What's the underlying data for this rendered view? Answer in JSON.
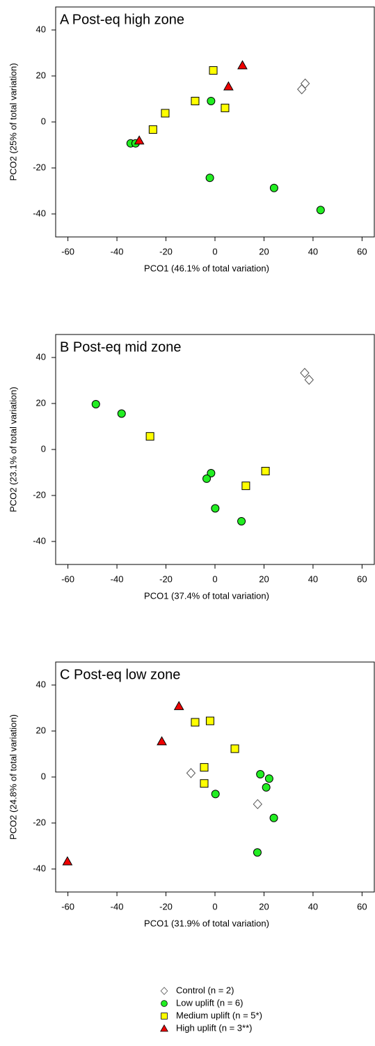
{
  "chart_data": [
    {
      "type": "scatter",
      "title": "A Post-eq high zone",
      "xlabel": "PCO1 (46.1% of total variation)",
      "ylabel": "PCO2 (25% of total variation)",
      "xlim": [
        -65,
        65
      ],
      "xticks": [
        -60,
        -40,
        -20,
        0,
        20,
        40,
        60
      ],
      "ylim": [
        -50,
        50
      ],
      "yticks": [
        -40,
        -20,
        0,
        20,
        40
      ],
      "series": [
        {
          "name": "Control (n = 2)",
          "color": "#ffffff",
          "marker": "diamond",
          "x": [
            36.8,
            35.4
          ],
          "y": [
            16.7,
            14.2
          ]
        },
        {
          "name": "Low uplift (n = 6)",
          "color": "#22ee22",
          "marker": "circle",
          "x": [
            -1.6,
            -34.4,
            -32.4,
            -2.1,
            24.1,
            43.1
          ],
          "y": [
            9.1,
            -9.3,
            -9.3,
            -24.3,
            -28.7,
            -38.3
          ]
        },
        {
          "name": "Medium uplift (n = 5*)",
          "color": "#ffff00",
          "marker": "square",
          "x": [
            -0.7,
            -8.1,
            -20.3,
            -25.3,
            4.1
          ],
          "y": [
            22.4,
            9.1,
            3.8,
            -3.3,
            6.1
          ]
        },
        {
          "name": "High uplift (n = 3**)",
          "color": "#ee0000",
          "marker": "triangle",
          "x": [
            11.2,
            5.5,
            -30.9
          ],
          "y": [
            24.6,
            15.4,
            -8.1
          ]
        }
      ]
    },
    {
      "type": "scatter",
      "title": "B Post-eq mid zone",
      "xlabel": "PCO1 (37.4% of total variation)",
      "ylabel": "PCO2 (23.1% of total variation)",
      "xlim": [
        -65,
        65
      ],
      "xticks": [
        -60,
        -40,
        -20,
        0,
        20,
        40,
        60
      ],
      "ylim": [
        -50,
        50
      ],
      "yticks": [
        -40,
        -20,
        0,
        20,
        40
      ],
      "series": [
        {
          "name": "Control (n = 2)",
          "color": "#ffffff",
          "marker": "diamond",
          "x": [
            36.6,
            38.4
          ],
          "y": [
            33.3,
            30.3
          ]
        },
        {
          "name": "Low uplift (n = 6)",
          "color": "#22ee22",
          "marker": "circle",
          "x": [
            -48.6,
            -38.1,
            -1.6,
            -3.4,
            0.1,
            10.8
          ],
          "y": [
            19.7,
            15.6,
            -10.3,
            -12.7,
            -25.6,
            -31.2
          ]
        },
        {
          "name": "Medium uplift (n = 5*)",
          "color": "#ffff00",
          "marker": "square",
          "x": [
            -26.5,
            20.6,
            12.6
          ],
          "y": [
            5.7,
            -9.4,
            -15.8
          ]
        }
      ]
    },
    {
      "type": "scatter",
      "title": "C Post-eq low zone",
      "xlabel": "PCO1 (31.9% of total variation)",
      "ylabel": "PCO2 (24.8% of total variation)",
      "xlim": [
        -65,
        65
      ],
      "xticks": [
        -60,
        -40,
        -20,
        0,
        20,
        40,
        60
      ],
      "ylim": [
        -50,
        50
      ],
      "yticks": [
        -40,
        -20,
        0,
        20,
        40
      ],
      "series": [
        {
          "name": "Control (n = 2)",
          "color": "#ffffff",
          "marker": "diamond",
          "x": [
            -9.8,
            17.4
          ],
          "y": [
            1.7,
            -11.8
          ]
        },
        {
          "name": "Low uplift (n = 6)",
          "color": "#22ee22",
          "marker": "circle",
          "x": [
            18.5,
            22.1,
            20.9,
            0.2,
            24.0,
            17.3
          ],
          "y": [
            1.2,
            -0.7,
            -4.5,
            -7.4,
            -17.8,
            -32.8
          ]
        },
        {
          "name": "Medium uplift (n = 5*)",
          "color": "#ffff00",
          "marker": "square",
          "x": [
            -8.1,
            -2.0,
            8.1,
            -4.4,
            -4.4
          ],
          "y": [
            23.8,
            24.4,
            12.3,
            4.2,
            -2.8
          ]
        },
        {
          "name": "High uplift (n = 3**)",
          "color": "#ee0000",
          "marker": "triangle",
          "x": [
            -14.7,
            -21.7,
            -60.2
          ],
          "y": [
            30.8,
            15.5,
            -36.7
          ]
        }
      ]
    }
  ]
}
